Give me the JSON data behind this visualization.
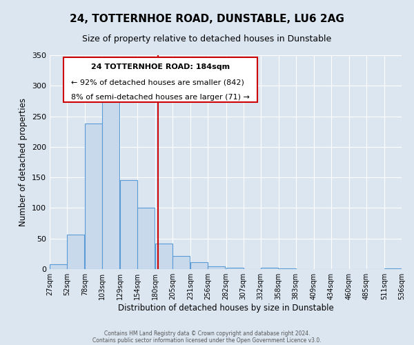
{
  "title": "24, TOTTERNHOE ROAD, DUNSTABLE, LU6 2AG",
  "subtitle": "Size of property relative to detached houses in Dunstable",
  "xlabel": "Distribution of detached houses by size in Dunstable",
  "ylabel": "Number of detached properties",
  "bar_left_edges": [
    27,
    52,
    78,
    103,
    129,
    154,
    180,
    205,
    231,
    256,
    282,
    307,
    332,
    358,
    383,
    409,
    434,
    460,
    485,
    511
  ],
  "bar_heights": [
    8,
    57,
    238,
    290,
    146,
    101,
    42,
    21,
    11,
    5,
    2,
    0,
    2,
    1,
    0,
    0,
    0,
    0,
    0,
    1
  ],
  "bin_width": 25,
  "bar_facecolor": "#c9d9ec",
  "bar_edgecolor": "#5b9bd5",
  "vline_x": 184,
  "vline_color": "#cc0000",
  "annotation_title": "24 TOTTERNHOE ROAD: 184sqm",
  "annotation_line1": "← 92% of detached houses are smaller (842)",
  "annotation_line2": "8% of semi-detached houses are larger (71) →",
  "annotation_box_color": "#cc0000",
  "ylim": [
    0,
    350
  ],
  "yticks": [
    0,
    50,
    100,
    150,
    200,
    250,
    300,
    350
  ],
  "tick_labels": [
    "27sqm",
    "52sqm",
    "78sqm",
    "103sqm",
    "129sqm",
    "154sqm",
    "180sqm",
    "205sqm",
    "231sqm",
    "256sqm",
    "282sqm",
    "307sqm",
    "332sqm",
    "358sqm",
    "383sqm",
    "409sqm",
    "434sqm",
    "460sqm",
    "485sqm",
    "511sqm",
    "536sqm"
  ],
  "bg_color": "#dce6f1",
  "plot_bg_color": "#dce6f1",
  "footer1": "Contains HM Land Registry data © Crown copyright and database right 2024.",
  "footer2": "Contains public sector information licensed under the Open Government Licence v3.0.",
  "title_fontsize": 11,
  "subtitle_fontsize": 9,
  "axis_label_fontsize": 8.5,
  "tick_fontsize": 7,
  "annotation_fontsize": 8,
  "footer_fontsize": 5.5
}
